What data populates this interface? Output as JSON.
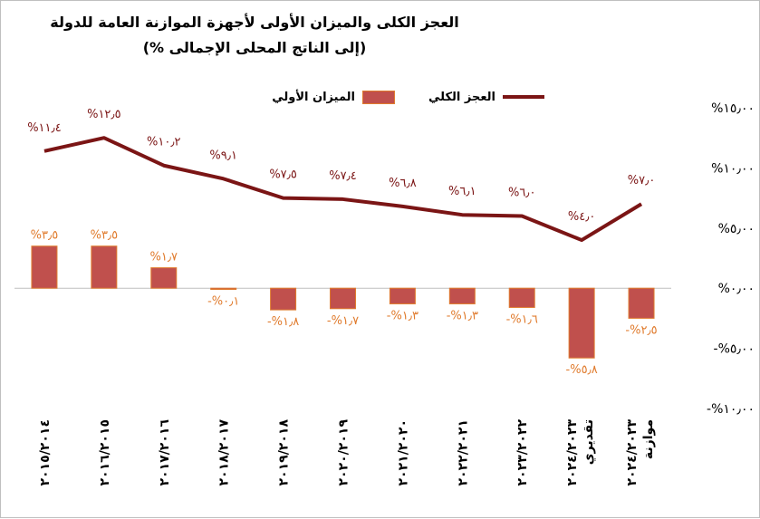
{
  "chart_data": {
    "type": "bar",
    "title": "العجز الكلى والميزان الأولى لأجهزة الموازنة العامة للدولة",
    "subtitle": "(% إلى الناتج المحلى الإجمالى)",
    "legend_position": "top",
    "categories": [
      "٢٠١٥/٢٠١٤",
      "٢٠١٦/٢٠١٥",
      "٢٠١٧/٢٠١٦",
      "٢٠١٨/٢٠١٧",
      "٢٠١٩/٢٠١٨",
      "٢٠٢٠/٢٠١٩",
      "٢٠٢١/٢٠٢٠",
      "٢٠٢٢/٢٠٢١",
      "٢٠٢٣/٢٠٢٢",
      "٢٠٢٤/٢٠٢٣ تقديري",
      "٢٠٢٤/٢٠٢٣ موازنة"
    ],
    "series": [
      {
        "name": "الميزان الأولي",
        "type": "bar",
        "values": [
          3.5,
          3.5,
          1.7,
          -0.1,
          -1.8,
          -1.7,
          -1.3,
          -1.3,
          -1.6,
          -5.8,
          -2.5
        ],
        "labels": [
          "%٣٫٥",
          "%٣٫٥",
          "%١٫٧",
          "-%٠٫١",
          "-%١٫٨",
          "-%١٫٧",
          "-%١٫٣",
          "-%١٫٣",
          "-%١٫٦",
          "-%٥٫٨",
          "-%٢٫٥"
        ]
      },
      {
        "name": "العجز الكلي",
        "type": "line",
        "values": [
          11.4,
          12.5,
          10.2,
          9.1,
          7.5,
          7.4,
          6.8,
          6.1,
          6.0,
          4.0,
          7.0
        ],
        "labels": [
          "%١١٫٤",
          "%١٢٫٥",
          "%١٠٫٢",
          "%٩٫١",
          "%٧٫٥",
          "%٧٫٤",
          "%٦٫٨",
          "%٦٫١",
          "%٦٫٠",
          "%٤٫٠",
          "%٧٫٠"
        ]
      }
    ],
    "ylim": [
      -10,
      15
    ],
    "yticks": [
      15,
      10,
      5,
      0,
      -5,
      -10
    ],
    "ytick_labels": [
      "%١٥٫٠٠",
      "%١٠٫٠٠",
      "%٥٫٠٠",
      "%٠٫٠٠",
      "-%٥٫٠٠",
      "-%١٠٫٠٠"
    ],
    "grid": false,
    "colors": {
      "bar": "#c0504d",
      "bar_border": "#e07b2d",
      "line": "#7b1515"
    }
  }
}
